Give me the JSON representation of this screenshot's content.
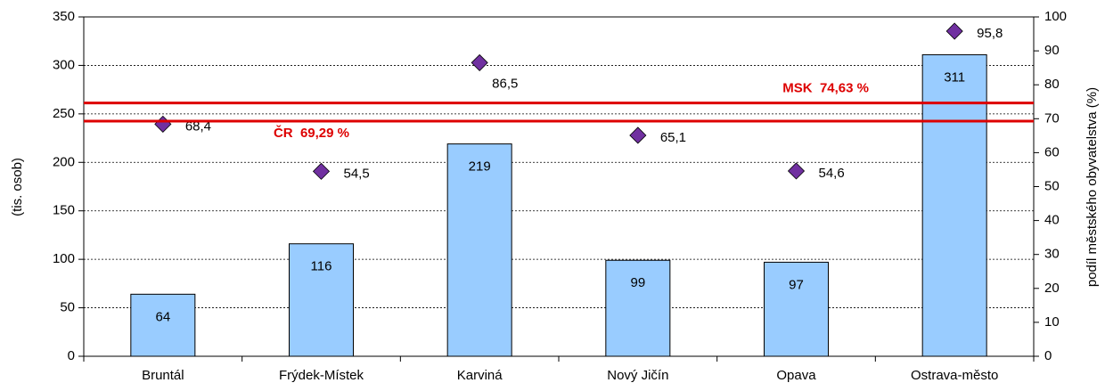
{
  "chart_data": {
    "type": "bar",
    "y_label": "(tis. osob)",
    "y2_label": "podíl městského obyvatelstva (%)",
    "categories": [
      "Bruntál",
      "Frýdek-Místek",
      "Karviná",
      "Nový Jičín",
      "Opava",
      "Ostrava-město"
    ],
    "series": [
      {
        "type": "bar",
        "color": "#99ccff",
        "values": [
          64,
          116,
          219,
          99,
          97,
          311
        ]
      },
      {
        "type": "scatter",
        "axis": "y2",
        "color": "#7030a0",
        "values": [
          68.4,
          54.5,
          86.5,
          65.1,
          54.6,
          95.8
        ],
        "value_labels": [
          "68,4",
          "54,5",
          "86,5",
          "65,1",
          "54,6",
          "95,8"
        ]
      }
    ],
    "reference_lines": [
      {
        "axis": "y2",
        "color": "#dd0000",
        "value": 74.63,
        "label": "MSK  74,63 %"
      },
      {
        "axis": "y2",
        "color": "#dd0000",
        "value": 69.29,
        "label": "ČR  69,29 %"
      }
    ],
    "ylim": [
      0,
      350
    ],
    "yticks": [
      0,
      50,
      100,
      150,
      200,
      250,
      300,
      350
    ],
    "y2lim": [
      0,
      100
    ],
    "y2ticks": [
      0,
      10,
      20,
      30,
      40,
      50,
      60,
      70,
      80,
      90,
      100
    ],
    "grid": true
  }
}
